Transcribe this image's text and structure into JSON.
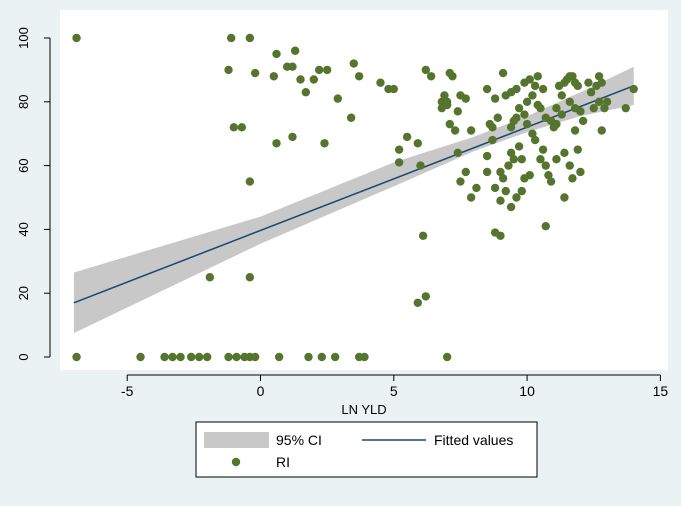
{
  "chart_data": {
    "type": "scatter",
    "title": "",
    "xlabel": "LN YLD",
    "ylabel": "",
    "xlim": [
      -7.5,
      15
    ],
    "ylim": [
      0,
      100
    ],
    "x_ticks": [
      -5,
      0,
      5,
      10,
      15
    ],
    "y_ticks": [
      0,
      20,
      40,
      60,
      80,
      100
    ],
    "grid": false,
    "legend_position": "bottom",
    "colors": {
      "plot_background": "#ffffff",
      "outer_background": "#eaf2f3",
      "ci_band": "#c8c8c8",
      "fitted_line": "#1a476f",
      "points": "#55752f"
    },
    "series": [
      {
        "name": "95% CI",
        "kind": "band",
        "x": [
          -7,
          0,
          5,
          8,
          10,
          12,
          14
        ],
        "lower": [
          7.5,
          35.5,
          53.5,
          64.5,
          70.5,
          75.5,
          79
        ],
        "upper": [
          26.5,
          44,
          61,
          69,
          75.5,
          83,
          91
        ]
      },
      {
        "name": "Fitted values",
        "kind": "line",
        "x": [
          -7,
          14
        ],
        "y": [
          17,
          85
        ]
      },
      {
        "name": "RI",
        "kind": "scatter",
        "points": [
          [
            -6.9,
            100
          ],
          [
            -1.1,
            100
          ],
          [
            -0.4,
            100
          ],
          [
            1.3,
            96
          ],
          [
            0.6,
            95
          ],
          [
            3.5,
            92
          ],
          [
            3.7,
            88
          ],
          [
            4.5,
            86
          ],
          [
            4.8,
            84
          ],
          [
            5.0,
            84
          ],
          [
            -1.2,
            90
          ],
          [
            -0.2,
            89
          ],
          [
            1.0,
            91
          ],
          [
            1.2,
            91
          ],
          [
            0.5,
            88
          ],
          [
            2.2,
            90
          ],
          [
            2.5,
            90
          ],
          [
            1.5,
            87
          ],
          [
            2.0,
            87
          ],
          [
            1.7,
            83
          ],
          [
            -1.0,
            72
          ],
          [
            -0.7,
            72
          ],
          [
            1.2,
            69
          ],
          [
            0.6,
            67
          ],
          [
            2.4,
            67
          ],
          [
            3.4,
            75
          ],
          [
            2.9,
            81
          ],
          [
            -0.4,
            55
          ],
          [
            5.2,
            65
          ],
          [
            5.5,
            69
          ],
          [
            5.2,
            61
          ],
          [
            5.9,
            67
          ],
          [
            6.0,
            60
          ],
          [
            6.2,
            90
          ],
          [
            6.4,
            88
          ],
          [
            6.8,
            80
          ],
          [
            7.0,
            80
          ],
          [
            7.1,
            89
          ],
          [
            7.2,
            88
          ],
          [
            7.5,
            82
          ],
          [
            6.8,
            78
          ],
          [
            7.4,
            77
          ],
          [
            7.1,
            73
          ],
          [
            7.0,
            79
          ],
          [
            6.9,
            82
          ],
          [
            7.3,
            71
          ],
          [
            7.7,
            81
          ],
          [
            7.9,
            71
          ],
          [
            8.1,
            53
          ],
          [
            7.9,
            50
          ],
          [
            7.5,
            55
          ],
          [
            7.4,
            64
          ],
          [
            7.7,
            58
          ],
          [
            8.5,
            58
          ],
          [
            8.5,
            84
          ],
          [
            8.8,
            81
          ],
          [
            9.1,
            89
          ],
          [
            9.2,
            82
          ],
          [
            9.4,
            83
          ],
          [
            9.6,
            84
          ],
          [
            8.6,
            73
          ],
          [
            8.7,
            72
          ],
          [
            8.9,
            75
          ],
          [
            8.7,
            68
          ],
          [
            8.5,
            63
          ],
          [
            8.8,
            53
          ],
          [
            9.1,
            56
          ],
          [
            9.0,
            58
          ],
          [
            9.2,
            52
          ],
          [
            9.0,
            49
          ],
          [
            9.4,
            47
          ],
          [
            9.6,
            50
          ],
          [
            9.8,
            52
          ],
          [
            9.9,
            56
          ],
          [
            10.1,
            57
          ],
          [
            9.3,
            60
          ],
          [
            9.5,
            62
          ],
          [
            9.4,
            64
          ],
          [
            9.7,
            66
          ],
          [
            9.8,
            62
          ],
          [
            9.5,
            74
          ],
          [
            9.4,
            72
          ],
          [
            9.6,
            75
          ],
          [
            9.7,
            78
          ],
          [
            9.9,
            76
          ],
          [
            10.0,
            73
          ],
          [
            9.9,
            86
          ],
          [
            10.1,
            87
          ],
          [
            10.3,
            85
          ],
          [
            10.4,
            88
          ],
          [
            10.2,
            82
          ],
          [
            10.0,
            80
          ],
          [
            10.4,
            79
          ],
          [
            10.6,
            84
          ],
          [
            10.5,
            78
          ],
          [
            10.2,
            70
          ],
          [
            10.3,
            68
          ],
          [
            10.6,
            65
          ],
          [
            10.5,
            62
          ],
          [
            10.7,
            60
          ],
          [
            10.8,
            57
          ],
          [
            10.9,
            55
          ],
          [
            10.7,
            75
          ],
          [
            10.9,
            74
          ],
          [
            11.0,
            72
          ],
          [
            11.1,
            73
          ],
          [
            11.1,
            78
          ],
          [
            11.3,
            76
          ],
          [
            11.2,
            85
          ],
          [
            11.4,
            86
          ],
          [
            11.5,
            87
          ],
          [
            11.6,
            88
          ],
          [
            11.7,
            88
          ],
          [
            11.8,
            86
          ],
          [
            11.9,
            85
          ],
          [
            11.3,
            82
          ],
          [
            11.6,
            80
          ],
          [
            11.8,
            78
          ],
          [
            12.0,
            77
          ],
          [
            12.1,
            74
          ],
          [
            11.8,
            71
          ],
          [
            11.9,
            65
          ],
          [
            11.6,
            60
          ],
          [
            11.4,
            64
          ],
          [
            11.1,
            62
          ],
          [
            11.7,
            56
          ],
          [
            11.4,
            50
          ],
          [
            12.0,
            58
          ],
          [
            10.7,
            41
          ],
          [
            9.0,
            38
          ],
          [
            8.8,
            39
          ],
          [
            6.1,
            38
          ],
          [
            6.2,
            19
          ],
          [
            5.9,
            17
          ],
          [
            -1.9,
            25
          ],
          [
            -0.4,
            25
          ],
          [
            12.4,
            83
          ],
          [
            12.6,
            85
          ],
          [
            12.7,
            80
          ],
          [
            12.9,
            78
          ],
          [
            12.8,
            71
          ],
          [
            13.0,
            80
          ],
          [
            13.7,
            78
          ],
          [
            14.0,
            84
          ],
          [
            12.5,
            78
          ],
          [
            12.8,
            86
          ],
          [
            12.7,
            88
          ],
          [
            12.3,
            86
          ],
          [
            -6.9,
            0
          ],
          [
            -4.5,
            0
          ],
          [
            -3.6,
            0
          ],
          [
            -3.3,
            0
          ],
          [
            -3.0,
            0
          ],
          [
            -2.6,
            0
          ],
          [
            -2.3,
            0
          ],
          [
            -2.0,
            0
          ],
          [
            -1.2,
            0
          ],
          [
            -0.9,
            0
          ],
          [
            -0.6,
            0
          ],
          [
            -0.4,
            0
          ],
          [
            -0.2,
            0
          ],
          [
            0.7,
            0
          ],
          [
            1.8,
            0
          ],
          [
            2.3,
            0
          ],
          [
            2.8,
            0
          ],
          [
            3.7,
            0
          ],
          [
            3.9,
            0
          ],
          [
            7.0,
            0
          ]
        ]
      }
    ]
  }
}
